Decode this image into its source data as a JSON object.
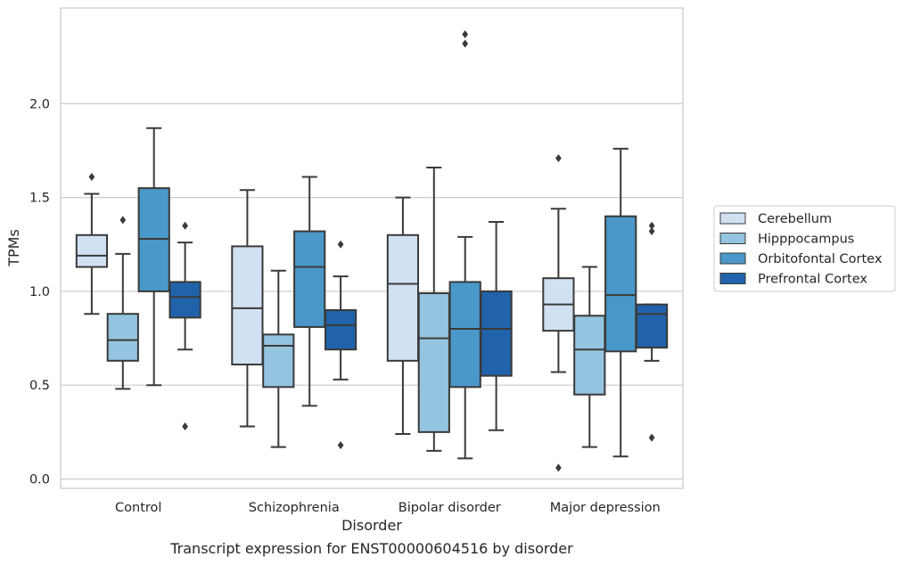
{
  "chart_data": {
    "type": "box",
    "xlabel": "Disorder",
    "ylabel": "TPMs",
    "caption": "Transcript expression for ENST00000604516 by disorder",
    "ylim": [
      -0.05,
      2.51
    ],
    "yticks": [
      "0.0",
      "0.5",
      "1.0",
      "1.5",
      "2.0"
    ],
    "grid": "horizontal",
    "legend_position": "right",
    "categories": [
      "Control",
      "Schizophrenia",
      "Bipolar disorder",
      "Major depression"
    ],
    "series": [
      {
        "name": "Cerebellum",
        "color": "#d0e1f2",
        "boxes": [
          {
            "whisker_low": 0.88,
            "q1": 1.13,
            "median": 1.19,
            "q3": 1.3,
            "whisker_high": 1.52,
            "outliers": [
              1.61
            ]
          },
          {
            "whisker_low": 0.28,
            "q1": 0.61,
            "median": 0.91,
            "q3": 1.24,
            "whisker_high": 1.54,
            "outliers": []
          },
          {
            "whisker_low": 0.24,
            "q1": 0.63,
            "median": 1.04,
            "q3": 1.3,
            "whisker_high": 1.5,
            "outliers": []
          },
          {
            "whisker_low": 0.57,
            "q1": 0.79,
            "median": 0.93,
            "q3": 1.07,
            "whisker_high": 1.44,
            "outliers": [
              1.71,
              0.06
            ]
          }
        ]
      },
      {
        "name": "Hipppocampus",
        "color": "#94c4df",
        "boxes": [
          {
            "whisker_low": 0.48,
            "q1": 0.63,
            "median": 0.74,
            "q3": 0.88,
            "whisker_high": 1.2,
            "outliers": [
              1.38
            ]
          },
          {
            "whisker_low": 0.17,
            "q1": 0.49,
            "median": 0.71,
            "q3": 0.77,
            "whisker_high": 1.11,
            "outliers": []
          },
          {
            "whisker_low": 0.15,
            "q1": 0.25,
            "median": 0.75,
            "q3": 0.99,
            "whisker_high": 1.66,
            "outliers": []
          },
          {
            "whisker_low": 0.17,
            "q1": 0.45,
            "median": 0.69,
            "q3": 0.87,
            "whisker_high": 1.13,
            "outliers": []
          }
        ]
      },
      {
        "name": "Orbitofontal Cortex",
        "color": "#4a98c9",
        "boxes": [
          {
            "whisker_low": 0.5,
            "q1": 1.0,
            "median": 1.28,
            "q3": 1.55,
            "whisker_high": 1.87,
            "outliers": []
          },
          {
            "whisker_low": 0.39,
            "q1": 0.81,
            "median": 1.13,
            "q3": 1.32,
            "whisker_high": 1.61,
            "outliers": []
          },
          {
            "whisker_low": 0.11,
            "q1": 0.49,
            "median": 0.8,
            "q3": 1.05,
            "whisker_high": 1.29,
            "outliers": [
              2.37,
              2.32
            ]
          },
          {
            "whisker_low": 0.12,
            "q1": 0.68,
            "median": 0.98,
            "q3": 1.4,
            "whisker_high": 1.76,
            "outliers": []
          }
        ]
      },
      {
        "name": "Prefrontal Cortex",
        "color": "#2163aa",
        "boxes": [
          {
            "whisker_low": 0.69,
            "q1": 0.86,
            "median": 0.97,
            "q3": 1.05,
            "whisker_high": 1.26,
            "outliers": [
              1.35,
              0.28
            ]
          },
          {
            "whisker_low": 0.53,
            "q1": 0.69,
            "median": 0.82,
            "q3": 0.9,
            "whisker_high": 1.08,
            "outliers": [
              1.25,
              0.18
            ]
          },
          {
            "whisker_low": 0.26,
            "q1": 0.55,
            "median": 0.8,
            "q3": 1.0,
            "whisker_high": 1.37,
            "outliers": []
          },
          {
            "whisker_low": 0.63,
            "q1": 0.7,
            "median": 0.88,
            "q3": 0.93,
            "whisker_high": 0.93,
            "outliers": [
              1.35,
              1.32,
              0.22
            ]
          }
        ]
      }
    ]
  }
}
